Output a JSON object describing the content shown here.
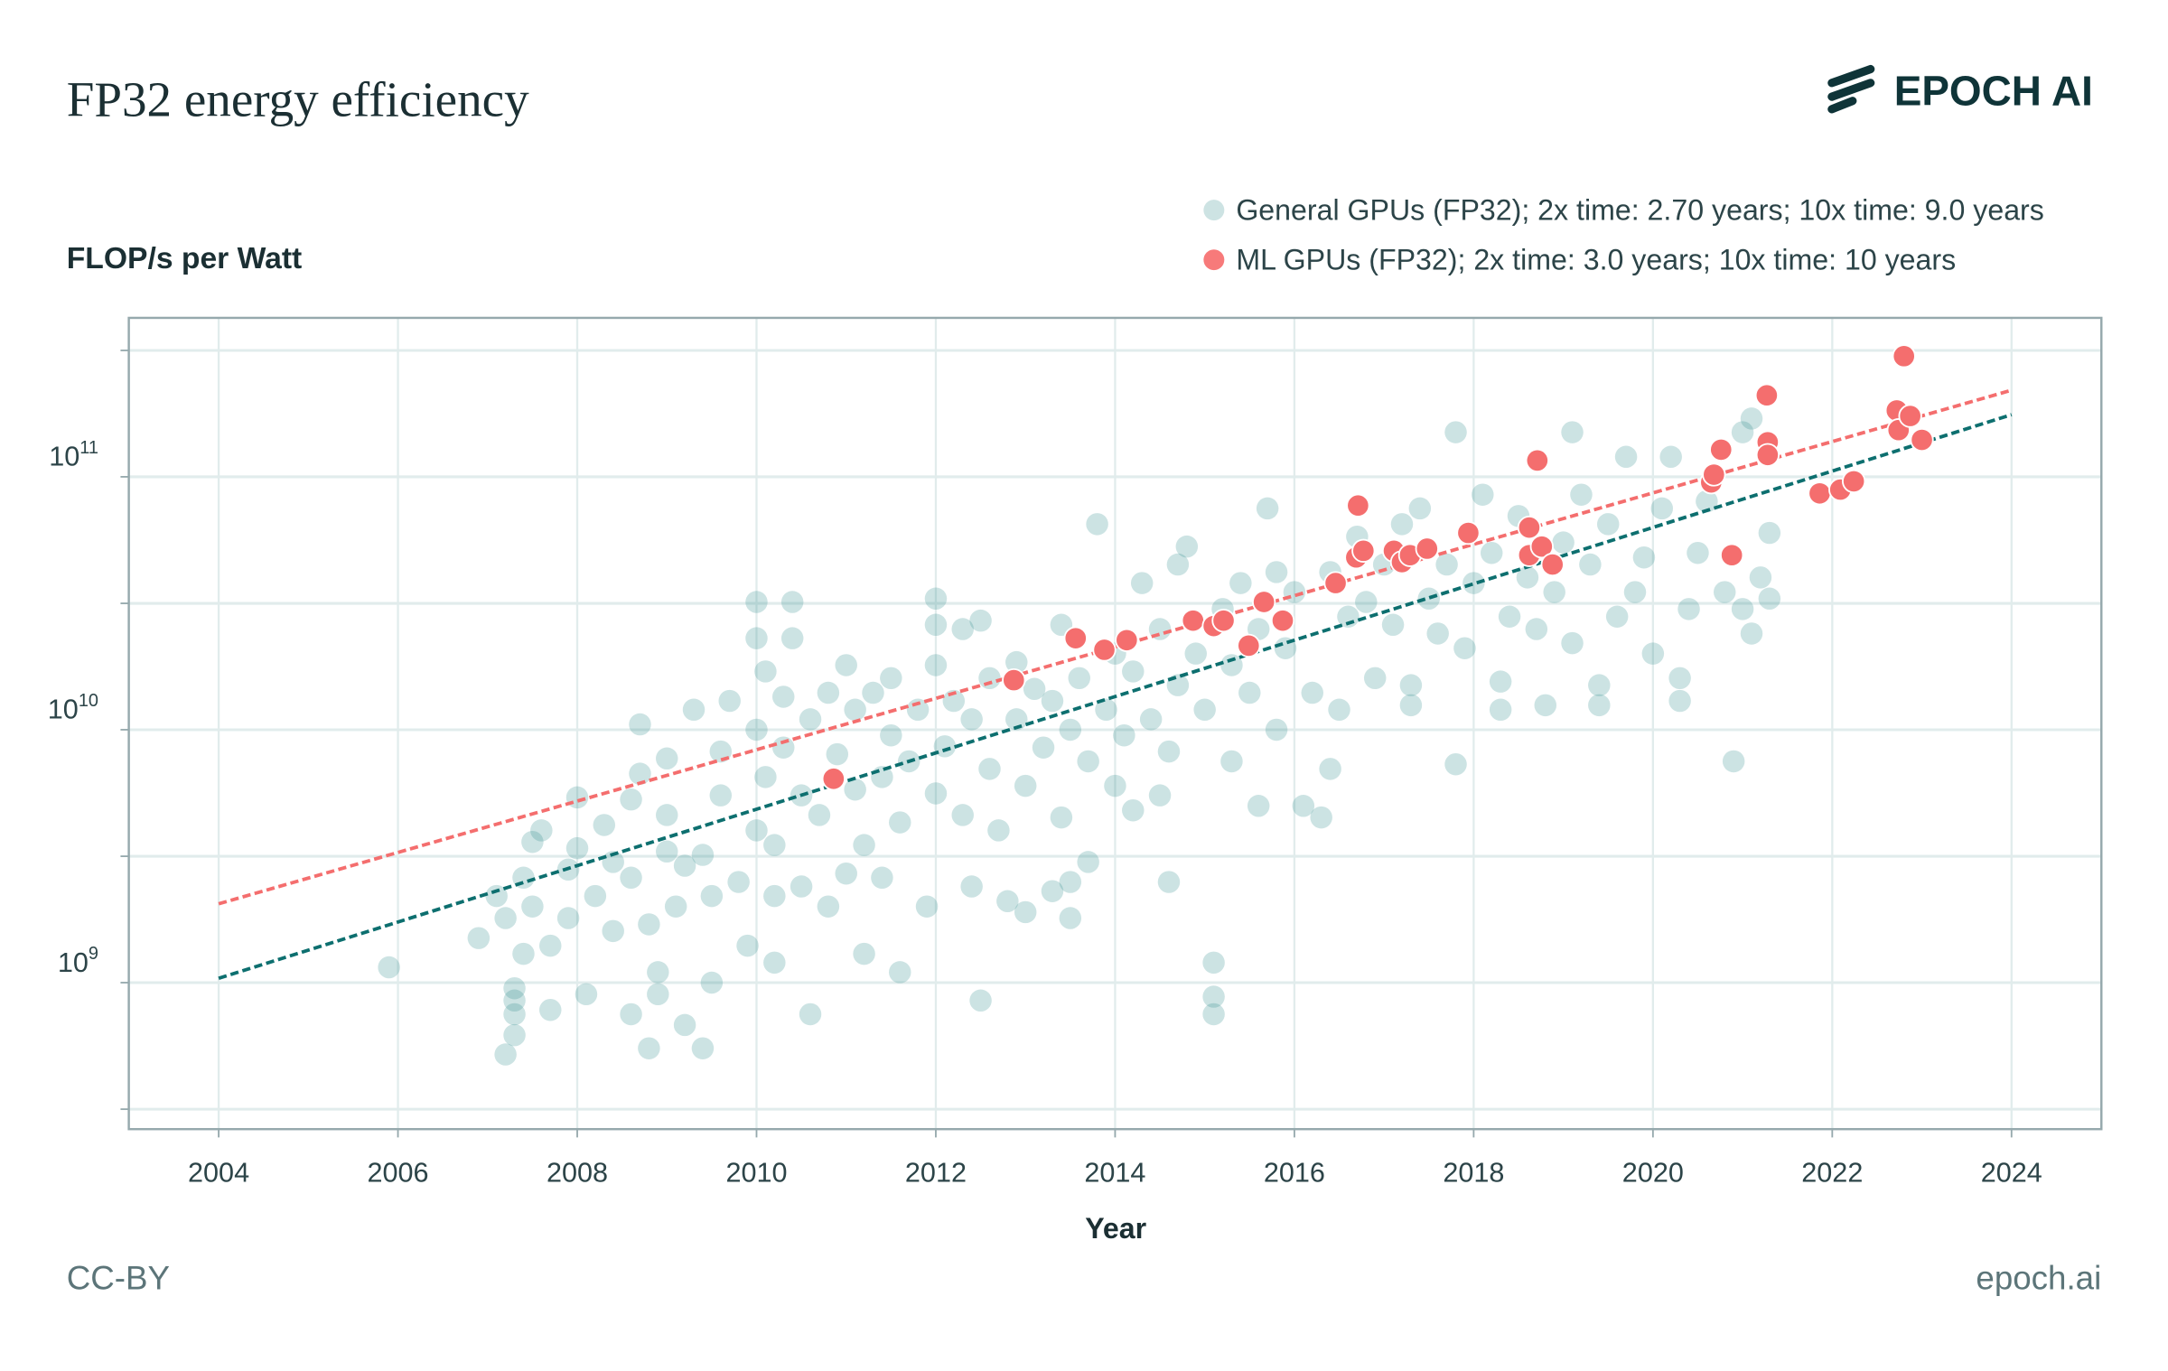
{
  "header": {
    "title": "FP32 energy efficiency",
    "logo_text": "EPOCH AI"
  },
  "footer": {
    "license": "CC-BY",
    "site": "epoch.ai"
  },
  "colors": {
    "general": "#2a8b8b",
    "general_legend": "#cde3e3",
    "ml": "#f46e6e",
    "general_trend": "#0d6f6f",
    "ml_trend": "#f46e6e",
    "text": "#1b2f33"
  },
  "chart_data": {
    "type": "scatter",
    "title": "FP32 energy efficiency",
    "xlabel": "Year",
    "ylabel": "FLOP/s per Watt",
    "xlim": [
      2003,
      2025
    ],
    "ylim": [
      260000000.0,
      430000000000.0
    ],
    "yscale": "log",
    "grid": true,
    "legend_placement": "top-right",
    "x_ticks": [
      2004,
      2006,
      2008,
      2010,
      2012,
      2014,
      2016,
      2018,
      2020,
      2022,
      2024
    ],
    "x_tick_labels": [
      "2004",
      "2006",
      "2008",
      "2010",
      "2012",
      "2014",
      "2016",
      "2018",
      "2020",
      "2022",
      "2024"
    ],
    "y_ticks": [
      1000000000.0,
      10000000000.0,
      100000000000.0
    ],
    "y_tick_labels": [
      {
        "base": "10",
        "exp": "9"
      },
      {
        "base": "10",
        "exp": "10"
      },
      {
        "base": "10",
        "exp": "11"
      }
    ],
    "y_minor_grid": [
      316000000.0,
      3160000000.0,
      31600000000.0,
      316000000000.0
    ],
    "series": [
      {
        "name": "General GPUs (FP32); 2x time: 2.70 years; 10x time: 9.0 years",
        "trend": [
          [
            2004,
            1040000000.0
          ],
          [
            2024,
            176000000000.0
          ]
        ],
        "points": [
          [
            2005.9,
            1150000000.0
          ],
          [
            2006.9,
            1500000000.0
          ],
          [
            2007.1,
            2200000000.0
          ],
          [
            2007.2,
            1800000000.0
          ],
          [
            2007.3,
            950000000.0
          ],
          [
            2007.3,
            850000000.0
          ],
          [
            2007.3,
            750000000.0
          ],
          [
            2007.4,
            1300000000.0
          ],
          [
            2007.4,
            2600000000.0
          ],
          [
            2007.5,
            3600000000.0
          ],
          [
            2007.5,
            2000000000.0
          ],
          [
            2007.2,
            520000000.0
          ],
          [
            2007.3,
            620000000.0
          ],
          [
            2007.6,
            4000000000.0
          ],
          [
            2007.7,
            1400000000.0
          ],
          [
            2007.7,
            780000000.0
          ],
          [
            2007.9,
            1800000000.0
          ],
          [
            2007.9,
            2800000000.0
          ],
          [
            2008.0,
            3400000000.0
          ],
          [
            2008.0,
            5400000000.0
          ],
          [
            2008.1,
            900000000.0
          ],
          [
            2008.2,
            2200000000.0
          ],
          [
            2008.3,
            4200000000.0
          ],
          [
            2008.4,
            3000000000.0
          ],
          [
            2008.4,
            1600000000.0
          ],
          [
            2008.6,
            5300000000.0
          ],
          [
            2008.6,
            2600000000.0
          ],
          [
            2008.6,
            750000000.0
          ],
          [
            2008.7,
            10500000000.0
          ],
          [
            2008.7,
            6700000000.0
          ],
          [
            2008.8,
            1700000000.0
          ],
          [
            2008.8,
            550000000.0
          ],
          [
            2008.9,
            1100000000.0
          ],
          [
            2008.9,
            900000000.0
          ],
          [
            2009.0,
            3300000000.0
          ],
          [
            2009.0,
            7700000000.0
          ],
          [
            2009.0,
            4600000000.0
          ],
          [
            2009.1,
            2000000000.0
          ],
          [
            2009.2,
            680000000.0
          ],
          [
            2009.2,
            2900000000.0
          ],
          [
            2009.3,
            12000000000.0
          ],
          [
            2009.4,
            3200000000.0
          ],
          [
            2009.4,
            550000000.0
          ],
          [
            2009.5,
            2200000000.0
          ],
          [
            2009.5,
            1000000000.0
          ],
          [
            2009.6,
            5500000000.0
          ],
          [
            2009.6,
            8200000000.0
          ],
          [
            2009.7,
            13000000000.0
          ],
          [
            2009.8,
            2500000000.0
          ],
          [
            2009.9,
            1400000000.0
          ],
          [
            2010.0,
            4000000000.0
          ],
          [
            2010.0,
            10000000000.0
          ],
          [
            2010.0,
            32000000000.0
          ],
          [
            2010.0,
            23000000000.0
          ],
          [
            2010.1,
            6500000000.0
          ],
          [
            2010.1,
            17000000000.0
          ],
          [
            2010.2,
            3500000000.0
          ],
          [
            2010.2,
            1200000000.0
          ],
          [
            2010.2,
            2200000000.0
          ],
          [
            2010.3,
            8500000000.0
          ],
          [
            2010.3,
            13500000000.0
          ],
          [
            2010.4,
            23000000000.0
          ],
          [
            2010.4,
            32000000000.0
          ],
          [
            2010.5,
            5500000000.0
          ],
          [
            2010.5,
            2400000000.0
          ],
          [
            2010.6,
            750000000.0
          ],
          [
            2010.6,
            11000000000.0
          ],
          [
            2010.7,
            4600000000.0
          ],
          [
            2010.8,
            14000000000.0
          ],
          [
            2010.8,
            2000000000.0
          ],
          [
            2010.9,
            8000000000.0
          ],
          [
            2011.0,
            18000000000.0
          ],
          [
            2011.0,
            2700000000.0
          ],
          [
            2011.1,
            12000000000.0
          ],
          [
            2011.1,
            5800000000.0
          ],
          [
            2011.2,
            1300000000.0
          ],
          [
            2011.2,
            3500000000.0
          ],
          [
            2011.3,
            14000000000.0
          ],
          [
            2011.4,
            2600000000.0
          ],
          [
            2011.4,
            6500000000.0
          ],
          [
            2011.5,
            9500000000.0
          ],
          [
            2011.5,
            16000000000.0
          ],
          [
            2011.6,
            4300000000.0
          ],
          [
            2011.6,
            1100000000.0
          ],
          [
            2011.7,
            7500000000.0
          ],
          [
            2011.8,
            12000000000.0
          ],
          [
            2011.9,
            2000000000.0
          ],
          [
            2012.0,
            5600000000.0
          ],
          [
            2012.0,
            33000000000.0
          ],
          [
            2012.0,
            26000000000.0
          ],
          [
            2012.0,
            18000000000.0
          ],
          [
            2012.1,
            8600000000.0
          ],
          [
            2012.2,
            13000000000.0
          ],
          [
            2012.3,
            25000000000.0
          ],
          [
            2012.3,
            4600000000.0
          ],
          [
            2012.4,
            11000000000.0
          ],
          [
            2012.4,
            2400000000.0
          ],
          [
            2012.5,
            850000000.0
          ],
          [
            2012.5,
            27000000000.0
          ],
          [
            2012.6,
            16000000000.0
          ],
          [
            2012.6,
            7000000000.0
          ],
          [
            2012.7,
            4000000000.0
          ],
          [
            2012.8,
            2100000000.0
          ],
          [
            2012.9,
            11000000000.0
          ],
          [
            2012.9,
            18500000000.0
          ],
          [
            2013.0,
            6000000000.0
          ],
          [
            2013.0,
            1900000000.0
          ],
          [
            2013.1,
            14500000000.0
          ],
          [
            2013.2,
            8500000000.0
          ],
          [
            2013.3,
            2300000000.0
          ],
          [
            2013.3,
            13000000000.0
          ],
          [
            2013.4,
            4500000000.0
          ],
          [
            2013.4,
            26000000000.0
          ],
          [
            2013.5,
            10000000000.0
          ],
          [
            2013.5,
            2500000000.0
          ],
          [
            2013.5,
            1800000000.0
          ],
          [
            2013.6,
            16000000000.0
          ],
          [
            2013.7,
            3000000000.0
          ],
          [
            2013.7,
            7500000000.0
          ],
          [
            2013.8,
            65000000000.0
          ],
          [
            2013.9,
            12000000000.0
          ],
          [
            2014.0,
            20000000000.0
          ],
          [
            2014.0,
            6000000000.0
          ],
          [
            2014.1,
            9500000000.0
          ],
          [
            2014.2,
            17000000000.0
          ],
          [
            2014.2,
            4800000000.0
          ],
          [
            2014.3,
            38000000000.0
          ],
          [
            2014.4,
            11000000000.0
          ],
          [
            2014.5,
            25000000000.0
          ],
          [
            2014.5,
            5500000000.0
          ],
          [
            2014.6,
            2500000000.0
          ],
          [
            2014.6,
            8200000000.0
          ],
          [
            2014.7,
            15000000000.0
          ],
          [
            2014.7,
            45000000000.0
          ],
          [
            2014.8,
            53000000000.0
          ],
          [
            2014.9,
            20000000000.0
          ],
          [
            2015.0,
            12000000000.0
          ],
          [
            2015.1,
            1200000000.0
          ],
          [
            2015.1,
            880000000.0
          ],
          [
            2015.1,
            750000000.0
          ],
          [
            2015.2,
            30000000000.0
          ],
          [
            2015.3,
            7500000000.0
          ],
          [
            2015.3,
            18000000000.0
          ],
          [
            2015.4,
            38000000000.0
          ],
          [
            2015.5,
            14000000000.0
          ],
          [
            2015.6,
            5000000000.0
          ],
          [
            2015.6,
            25000000000.0
          ],
          [
            2015.7,
            75000000000.0
          ],
          [
            2015.8,
            42000000000.0
          ],
          [
            2015.8,
            10000000000.0
          ],
          [
            2015.9,
            21000000000.0
          ],
          [
            2016.0,
            35000000000.0
          ],
          [
            2016.1,
            5000000000.0
          ],
          [
            2016.2,
            14000000000.0
          ],
          [
            2016.3,
            4500000000.0
          ],
          [
            2016.4,
            42000000000.0
          ],
          [
            2016.4,
            7000000000.0
          ],
          [
            2016.5,
            12000000000.0
          ],
          [
            2016.6,
            28000000000.0
          ],
          [
            2016.7,
            58000000000.0
          ],
          [
            2016.8,
            32000000000.0
          ],
          [
            2016.9,
            16000000000.0
          ],
          [
            2017.0,
            45000000000.0
          ],
          [
            2017.1,
            26000000000.0
          ],
          [
            2017.2,
            65000000000.0
          ],
          [
            2017.3,
            15000000000.0
          ],
          [
            2017.3,
            12500000000.0
          ],
          [
            2017.4,
            75000000000.0
          ],
          [
            2017.5,
            33000000000.0
          ],
          [
            2017.6,
            24000000000.0
          ],
          [
            2017.7,
            45000000000.0
          ],
          [
            2017.8,
            7300000000.0
          ],
          [
            2017.8,
            150000000000.0
          ],
          [
            2017.9,
            21000000000.0
          ],
          [
            2018.0,
            38000000000.0
          ],
          [
            2018.1,
            85000000000.0
          ],
          [
            2018.2,
            50000000000.0
          ],
          [
            2018.3,
            15500000000.0
          ],
          [
            2018.3,
            12000000000.0
          ],
          [
            2018.4,
            28000000000.0
          ],
          [
            2018.5,
            70000000000.0
          ],
          [
            2018.6,
            40000000000.0
          ],
          [
            2018.7,
            25000000000.0
          ],
          [
            2018.8,
            12500000000.0
          ],
          [
            2018.9,
            35000000000.0
          ],
          [
            2019.0,
            55000000000.0
          ],
          [
            2019.1,
            150000000000.0
          ],
          [
            2019.1,
            22000000000.0
          ],
          [
            2019.2,
            85000000000.0
          ],
          [
            2019.3,
            45000000000.0
          ],
          [
            2019.4,
            12500000000.0
          ],
          [
            2019.4,
            15000000000.0
          ],
          [
            2019.5,
            65000000000.0
          ],
          [
            2019.6,
            28000000000.0
          ],
          [
            2019.7,
            120000000000.0
          ],
          [
            2019.8,
            35000000000.0
          ],
          [
            2019.9,
            48000000000.0
          ],
          [
            2020.0,
            20000000000.0
          ],
          [
            2020.1,
            75000000000.0
          ],
          [
            2020.2,
            120000000000.0
          ],
          [
            2020.3,
            16000000000.0
          ],
          [
            2020.3,
            13000000000.0
          ],
          [
            2020.4,
            30000000000.0
          ],
          [
            2020.5,
            50000000000.0
          ],
          [
            2020.6,
            80000000000.0
          ],
          [
            2020.8,
            35000000000.0
          ],
          [
            2020.9,
            7500000000.0
          ],
          [
            2021.0,
            150000000000.0
          ],
          [
            2021.0,
            30000000000.0
          ],
          [
            2021.1,
            170000000000.0
          ],
          [
            2021.1,
            24000000000.0
          ],
          [
            2021.2,
            40000000000.0
          ],
          [
            2021.3,
            60000000000.0
          ],
          [
            2021.3,
            33000000000.0
          ]
        ]
      },
      {
        "name": "ML GPUs (FP32); 2x time: 3.0 years; 10x time: 10 years",
        "trend": [
          [
            2004,
            2050000000.0
          ],
          [
            2024,
            220000000000.0
          ]
        ],
        "points": [
          [
            2010.86,
            6400000000.0
          ],
          [
            2012.87,
            15700000000.0
          ],
          [
            2013.56,
            23000000000.0
          ],
          [
            2013.88,
            20700000000.0
          ],
          [
            2014.13,
            22600000000.0
          ],
          [
            2014.87,
            27000000000.0
          ],
          [
            2015.1,
            25700000000.0
          ],
          [
            2015.21,
            27000000000.0
          ],
          [
            2015.49,
            21500000000.0
          ],
          [
            2015.66,
            32000000000.0
          ],
          [
            2015.87,
            27000000000.0
          ],
          [
            2016.46,
            38000000000.0
          ],
          [
            2016.71,
            77000000000.0
          ],
          [
            2016.69,
            48000000000.0
          ],
          [
            2016.77,
            51000000000.0
          ],
          [
            2017.11,
            51000000000.0
          ],
          [
            2017.2,
            46000000000.0
          ],
          [
            2017.29,
            49000000000.0
          ],
          [
            2017.48,
            52000000000.0
          ],
          [
            2017.94,
            60000000000.0
          ],
          [
            2018.62,
            63000000000.0
          ],
          [
            2018.71,
            116000000000.0
          ],
          [
            2018.62,
            49000000000.0
          ],
          [
            2018.76,
            53000000000.0
          ],
          [
            2018.88,
            45000000000.0
          ],
          [
            2020.65,
            95000000000.0
          ],
          [
            2020.68,
            102000000000.0
          ],
          [
            2020.76,
            128000000000.0
          ],
          [
            2020.88,
            49000000000.0
          ],
          [
            2021.27,
            210000000000.0
          ],
          [
            2021.28,
            137000000000.0
          ],
          [
            2021.28,
            122000000000.0
          ],
          [
            2021.86,
            86000000000.0
          ],
          [
            2022.09,
            89000000000.0
          ],
          [
            2022.24,
            96000000000.0
          ],
          [
            2022.72,
            183000000000.0
          ],
          [
            2022.8,
            300000000000.0
          ],
          [
            2022.74,
            153000000000.0
          ],
          [
            2022.87,
            174000000000.0
          ],
          [
            2023.0,
            140000000000.0
          ]
        ]
      }
    ]
  }
}
